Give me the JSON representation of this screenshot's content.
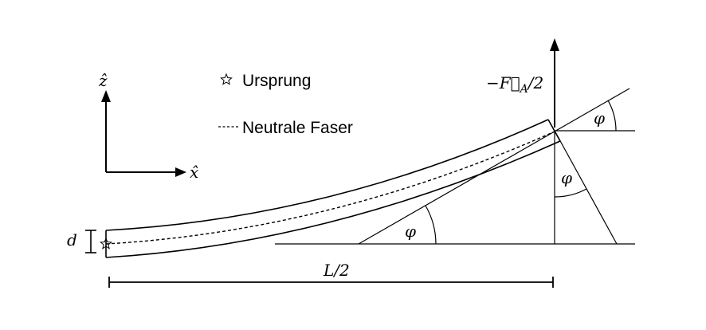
{
  "legend": {
    "origin_label": "Ursprung",
    "neutral_label": "Neutrale Faser"
  },
  "axes": {
    "z_label": "ẑ",
    "x_label": "x̂"
  },
  "labels": {
    "force": "−F⃗",
    "force_subscript": "A",
    "force_suffix": "/2",
    "thickness": "d",
    "length": "L/2",
    "angle_1": "φ",
    "angle_2": "φ",
    "angle_3": "φ"
  },
  "icons": {
    "origin_marker": "star-icon"
  }
}
